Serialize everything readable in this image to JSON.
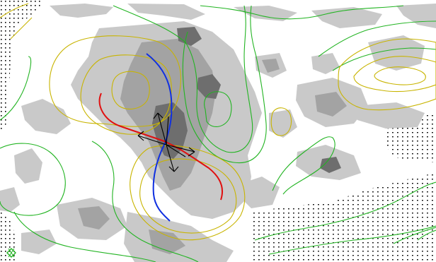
{
  "map": {
    "colors": {
      "background": "#ffffff",
      "cloud_light": "#c9c9c9",
      "cloud_mid": "#a3a3a3",
      "cloud_dark": "#6e6e6e",
      "contour_green": "#22b422",
      "contour_yellow": "#c8b400",
      "axis_red": "#e01010",
      "axis_blue": "#1030e0",
      "wind_barb": "#000000",
      "stipple": "#000000",
      "center_marker": "#22b422",
      "upper_left_marker": "#c8b400"
    },
    "icons": {
      "axis_of_dilatation": "red-line",
      "axis_of_contraction": "blue-line",
      "wind_barbs": "wind-barb-icon",
      "center_marker": "diamond-icon",
      "corner_marker": "tick-mark-icon"
    }
  }
}
